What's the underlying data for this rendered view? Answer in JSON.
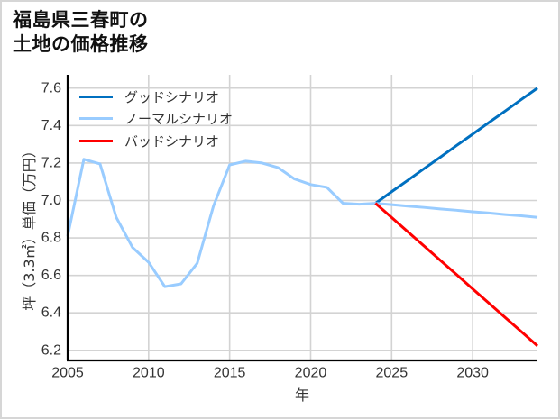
{
  "title": {
    "line1": "福島県三春町の",
    "line2": "土地の価格推移"
  },
  "chart_data": {
    "type": "line",
    "title": "福島県三春町の土地の価格推移",
    "xlabel": "年",
    "ylabel": "坪（3.3㎡）単価（万円）",
    "xlim": [
      2005,
      2034
    ],
    "ylim": [
      6.151,
      7.671
    ],
    "xticks": [
      2005,
      2010,
      2015,
      2020,
      2025,
      2030
    ],
    "yticks": [
      6.2,
      6.4,
      6.6,
      6.8,
      7.0,
      7.2,
      7.4,
      7.6
    ],
    "ytick_labels": [
      "6.2",
      "6.4",
      "6.6",
      "6.8",
      "7.0",
      "7.2",
      "7.4",
      "7.6"
    ],
    "grid": true,
    "legend_position": "upper left",
    "colors": {
      "grid": "#d3d3d3",
      "axis": "#000000",
      "tick_text": "#333333"
    },
    "series": [
      {
        "name": "グッドシナリオ",
        "color": "#0070C0",
        "x": [
          2024,
          2025,
          2026,
          2027,
          2028,
          2029,
          2030,
          2031,
          2032,
          2033,
          2034
        ],
        "values": [
          6.985,
          7.047,
          7.108,
          7.17,
          7.231,
          7.293,
          7.354,
          7.416,
          7.477,
          7.539,
          7.6
        ]
      },
      {
        "name": "ノーマルシナリオ",
        "color": "#99CCFF",
        "x": [
          2005,
          2006,
          2007,
          2008,
          2009,
          2010,
          2011,
          2012,
          2013,
          2014,
          2015,
          2016,
          2017,
          2018,
          2019,
          2020,
          2021,
          2022,
          2023,
          2024,
          2025,
          2026,
          2027,
          2028,
          2029,
          2030,
          2031,
          2032,
          2033,
          2034
        ],
        "values": [
          6.81,
          7.22,
          7.195,
          6.91,
          6.75,
          6.67,
          6.54,
          6.555,
          6.665,
          6.97,
          7.19,
          7.21,
          7.2,
          7.175,
          7.115,
          7.085,
          7.07,
          6.985,
          6.98,
          6.985,
          6.978,
          6.97,
          6.963,
          6.955,
          6.948,
          6.94,
          6.933,
          6.925,
          6.918,
          6.91
        ]
      },
      {
        "name": "バッドシナリオ",
        "color": "#FF0000",
        "x": [
          2024,
          2025,
          2026,
          2027,
          2028,
          2029,
          2030,
          2031,
          2032,
          2033,
          2034
        ],
        "values": [
          6.985,
          6.909,
          6.833,
          6.757,
          6.681,
          6.605,
          6.528,
          6.452,
          6.376,
          6.3,
          6.224
        ]
      }
    ]
  }
}
